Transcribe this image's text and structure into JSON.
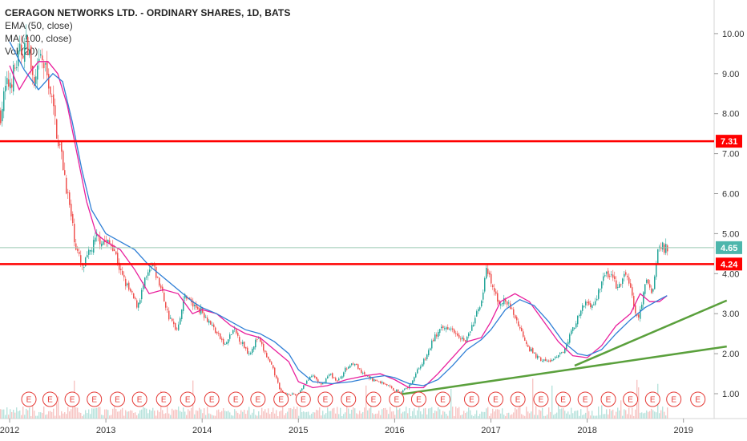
{
  "header": {
    "title": "CERAGON NETWORKS LTD. - ORDINARY SHARES, 1D, BATS",
    "indicators": [
      "EMA (50, close)",
      "MA (100, close)",
      "Vol (20)"
    ]
  },
  "colors": {
    "candle_up": "#26a69a",
    "candle_down": "#ef5350",
    "ema": "#e91e9c",
    "ma": "#2f7fd6",
    "hline": "#ff0000",
    "trendline": "#5aa03c",
    "last_price_line": "#9ccab5",
    "last_price_tag": "#4db6ac",
    "earnings": "#e53935"
  },
  "chart_data": {
    "type": "line",
    "x_ticks": [
      "2012",
      "2013",
      "2014",
      "2015",
      "2016",
      "2017",
      "2018",
      "2019"
    ],
    "y_ticks": [
      "1.00",
      "2.00",
      "3.00",
      "4.00",
      "5.00",
      "6.00",
      "7.00",
      "8.00",
      "9.00",
      "10.00"
    ],
    "ylim": [
      0.7,
      10.5
    ],
    "series": [
      {
        "name": "price",
        "x": [
          2012.0,
          2012.05,
          2012.12,
          2012.2,
          2012.28,
          2012.35,
          2012.42,
          2012.5,
          2012.58,
          2012.65,
          2012.72,
          2012.78,
          2012.85,
          2012.92,
          2013.0,
          2013.08,
          2013.17,
          2013.25,
          2013.33,
          2013.42,
          2013.5,
          2013.58,
          2013.67,
          2013.75,
          2013.83,
          2013.92,
          2014.0,
          2014.08,
          2014.17,
          2014.25,
          2014.33,
          2014.42,
          2014.5,
          2014.58,
          2014.67,
          2014.75,
          2014.83,
          2014.92,
          2015.0,
          2015.08,
          2015.17,
          2015.25,
          2015.33,
          2015.42,
          2015.5,
          2015.58,
          2015.67,
          2015.75,
          2015.83,
          2015.92,
          2016.0,
          2016.08,
          2016.17,
          2016.25,
          2016.33,
          2016.42,
          2016.5,
          2016.58,
          2016.67,
          2016.75,
          2016.83,
          2016.92,
          2017.0,
          2017.05,
          2017.1,
          2017.17,
          2017.25,
          2017.33,
          2017.42,
          2017.5,
          2017.58,
          2017.67,
          2017.75,
          2017.83,
          2017.92,
          2018.0,
          2018.08,
          2018.17,
          2018.25,
          2018.33,
          2018.42,
          2018.5,
          2018.58,
          2018.62,
          2018.67,
          2018.72,
          2018.76,
          2018.8,
          2018.83
        ],
        "values": [
          8.0,
          8.6,
          8.9,
          9.5,
          9.8,
          8.6,
          9.4,
          8.8,
          7.6,
          6.7,
          5.6,
          4.7,
          4.1,
          4.5,
          4.9,
          4.8,
          4.7,
          4.0,
          3.6,
          3.2,
          3.8,
          4.2,
          3.6,
          2.9,
          2.6,
          3.5,
          3.2,
          3.1,
          2.8,
          2.5,
          2.2,
          2.6,
          2.3,
          2.0,
          2.4,
          2.0,
          1.6,
          1.0,
          1.0,
          0.95,
          1.3,
          1.45,
          1.2,
          1.5,
          1.3,
          1.6,
          1.8,
          1.5,
          1.4,
          1.3,
          1.25,
          1.1,
          1.05,
          1.2,
          1.6,
          1.9,
          2.4,
          2.6,
          2.7,
          2.5,
          2.3,
          2.8,
          3.4,
          4.1,
          3.7,
          3.3,
          3.3,
          3.0,
          2.5,
          2.1,
          1.9,
          1.8,
          1.85,
          2.0,
          2.5,
          2.9,
          3.3,
          3.2,
          3.9,
          4.0,
          3.6,
          4.05,
          3.2,
          2.8,
          3.4,
          3.9,
          3.5,
          4.0,
          4.65
        ]
      },
      {
        "name": "EMA (50, close)",
        "x": [
          2012.0,
          2012.1,
          2012.2,
          2012.3,
          2012.4,
          2012.5,
          2012.6,
          2012.7,
          2012.8,
          2012.9,
          2013.0,
          2013.15,
          2013.3,
          2013.45,
          2013.6,
          2013.75,
          2013.9,
          2014.0,
          2014.15,
          2014.3,
          2014.45,
          2014.6,
          2014.75,
          2014.9,
          2015.0,
          2015.15,
          2015.3,
          2015.5,
          2015.7,
          2015.85,
          2016.0,
          2016.15,
          2016.3,
          2016.45,
          2016.6,
          2016.75,
          2016.9,
          2017.0,
          2017.1,
          2017.25,
          2017.4,
          2017.55,
          2017.7,
          2017.85,
          2018.0,
          2018.15,
          2018.3,
          2018.45,
          2018.55,
          2018.65,
          2018.75,
          2018.83
        ],
        "values": [
          9.2,
          8.6,
          9.0,
          9.3,
          9.3,
          9.0,
          8.2,
          7.0,
          5.8,
          5.0,
          4.8,
          4.6,
          4.1,
          3.5,
          3.6,
          3.5,
          3.0,
          3.1,
          3.0,
          2.7,
          2.5,
          2.4,
          2.1,
          1.8,
          1.3,
          1.15,
          1.2,
          1.35,
          1.45,
          1.5,
          1.35,
          1.15,
          1.15,
          1.5,
          1.9,
          2.3,
          2.4,
          2.8,
          3.3,
          3.5,
          3.3,
          2.8,
          2.3,
          1.95,
          1.9,
          2.2,
          2.7,
          3.0,
          3.5,
          3.3,
          3.3,
          3.45
        ]
      },
      {
        "name": "MA (100, close)",
        "x": [
          2012.0,
          2012.15,
          2012.3,
          2012.45,
          2012.55,
          2012.65,
          2012.75,
          2012.85,
          2013.0,
          2013.15,
          2013.3,
          2013.45,
          2013.6,
          2013.75,
          2013.9,
          2014.0,
          2014.15,
          2014.3,
          2014.45,
          2014.6,
          2014.75,
          2014.9,
          2015.0,
          2015.15,
          2015.35,
          2015.55,
          2015.75,
          2015.9,
          2016.0,
          2016.15,
          2016.3,
          2016.45,
          2016.6,
          2016.75,
          2016.9,
          2017.0,
          2017.15,
          2017.3,
          2017.45,
          2017.6,
          2017.75,
          2017.9,
          2018.0,
          2018.15,
          2018.3,
          2018.45,
          2018.6,
          2018.75,
          2018.83
        ],
        "values": [
          9.8,
          9.1,
          8.6,
          9.0,
          8.8,
          7.8,
          6.6,
          5.6,
          5.0,
          4.8,
          4.6,
          4.2,
          3.9,
          3.6,
          3.3,
          3.15,
          3.0,
          2.8,
          2.6,
          2.5,
          2.3,
          2.0,
          1.6,
          1.3,
          1.25,
          1.3,
          1.4,
          1.45,
          1.4,
          1.25,
          1.2,
          1.35,
          1.7,
          2.1,
          2.35,
          2.6,
          3.1,
          3.35,
          3.2,
          2.8,
          2.3,
          2.0,
          1.95,
          2.1,
          2.5,
          2.85,
          3.15,
          3.35,
          3.45
        ]
      }
    ],
    "hlines": [
      7.31,
      4.24
    ],
    "trendlines": [
      {
        "from": [
          2016.05,
          0.98
        ],
        "to": [
          2019.45,
          2.18
        ]
      },
      {
        "from": [
          2017.87,
          1.7
        ],
        "to": [
          2019.45,
          3.33
        ]
      }
    ],
    "last_price": 4.65,
    "price_tags": [
      "7.31",
      "4.65",
      "4.24"
    ],
    "earnings_markers": [
      "E",
      "E",
      "E",
      "E",
      "E",
      "E",
      "E",
      "E",
      "E",
      "E",
      "E",
      "E",
      "E",
      "E",
      "E",
      "E",
      "E",
      "E",
      "E",
      "E",
      "E",
      "E",
      "E",
      "E",
      "E",
      "E",
      "E",
      "E",
      "E",
      "E"
    ],
    "earnings_x": [
      2012.2,
      2012.42,
      2012.65,
      2012.88,
      2013.12,
      2013.35,
      2013.6,
      2013.85,
      2014.1,
      2014.35,
      2014.58,
      2014.82,
      2015.05,
      2015.28,
      2015.52,
      2015.78,
      2016.02,
      2016.25,
      2016.5,
      2016.8,
      2017.05,
      2017.28,
      2017.52,
      2017.75,
      2017.98,
      2018.22,
      2018.45,
      2018.68,
      2018.9,
      2019.15
    ]
  }
}
